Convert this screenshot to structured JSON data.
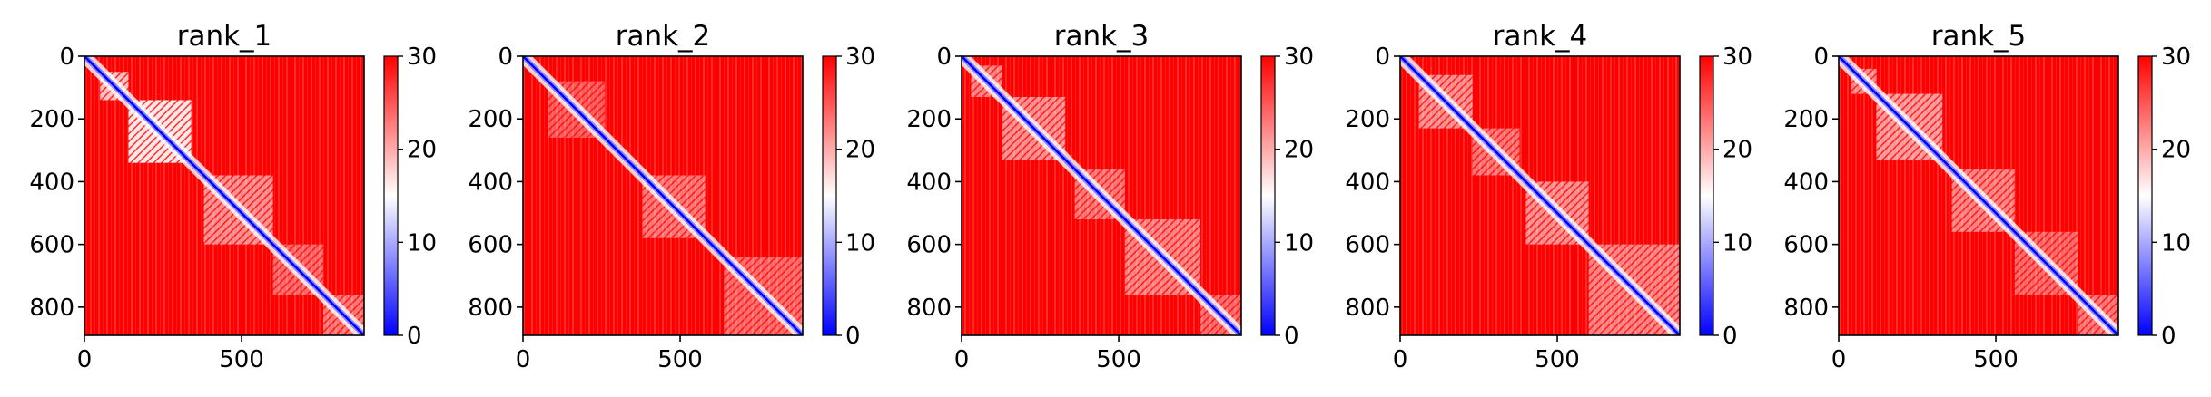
{
  "chart_data": [
    {
      "type": "heatmap",
      "title": "rank_1",
      "matrix_size": 890,
      "x_ticks": [
        0,
        500
      ],
      "y_ticks": [
        0,
        200,
        400,
        600,
        800
      ],
      "colorbar": {
        "min": 0,
        "max": 30,
        "ticks": [
          0,
          10,
          20,
          30
        ],
        "colors": [
          "#0000ff",
          "#ffffff",
          "#ff0000"
        ]
      },
      "diagonal_blobs": [
        [
          50,
          140,
          0.75
        ],
        [
          140,
          340,
          0.9
        ],
        [
          380,
          600,
          0.55
        ],
        [
          600,
          760,
          0.4
        ],
        [
          760,
          890,
          0.45
        ]
      ]
    },
    {
      "type": "heatmap",
      "title": "rank_2",
      "matrix_size": 890,
      "x_ticks": [
        0,
        500
      ],
      "y_ticks": [
        0,
        200,
        400,
        600,
        800
      ],
      "colorbar": {
        "min": 0,
        "max": 30,
        "ticks": [
          0,
          10,
          20,
          30
        ],
        "colors": [
          "#0000ff",
          "#ffffff",
          "#ff0000"
        ]
      },
      "diagonal_blobs": [
        [
          80,
          260,
          0.35
        ],
        [
          380,
          580,
          0.45
        ],
        [
          640,
          890,
          0.4
        ]
      ]
    },
    {
      "type": "heatmap",
      "title": "rank_3",
      "matrix_size": 890,
      "x_ticks": [
        0,
        500
      ],
      "y_ticks": [
        0,
        200,
        400,
        600,
        800
      ],
      "colorbar": {
        "min": 0,
        "max": 30,
        "ticks": [
          0,
          10,
          20,
          30
        ],
        "colors": [
          "#0000ff",
          "#ffffff",
          "#ff0000"
        ]
      },
      "diagonal_blobs": [
        [
          30,
          130,
          0.5
        ],
        [
          130,
          330,
          0.55
        ],
        [
          360,
          520,
          0.45
        ],
        [
          520,
          760,
          0.5
        ],
        [
          760,
          890,
          0.4
        ]
      ]
    },
    {
      "type": "heatmap",
      "title": "rank_4",
      "matrix_size": 890,
      "x_ticks": [
        0,
        500
      ],
      "y_ticks": [
        0,
        200,
        400,
        600,
        800
      ],
      "colorbar": {
        "min": 0,
        "max": 30,
        "ticks": [
          0,
          10,
          20,
          30
        ],
        "colors": [
          "#0000ff",
          "#ffffff",
          "#ff0000"
        ]
      },
      "diagonal_blobs": [
        [
          60,
          230,
          0.55
        ],
        [
          230,
          380,
          0.45
        ],
        [
          400,
          600,
          0.55
        ],
        [
          600,
          890,
          0.5
        ]
      ]
    },
    {
      "type": "heatmap",
      "title": "rank_5",
      "matrix_size": 890,
      "x_ticks": [
        0,
        500
      ],
      "y_ticks": [
        0,
        200,
        400,
        600,
        800
      ],
      "colorbar": {
        "min": 0,
        "max": 30,
        "ticks": [
          0,
          10,
          20,
          30
        ],
        "colors": [
          "#0000ff",
          "#ffffff",
          "#ff0000"
        ]
      },
      "diagonal_blobs": [
        [
          40,
          120,
          0.55
        ],
        [
          120,
          330,
          0.6
        ],
        [
          360,
          560,
          0.5
        ],
        [
          560,
          760,
          0.4
        ],
        [
          760,
          890,
          0.45
        ]
      ]
    }
  ]
}
